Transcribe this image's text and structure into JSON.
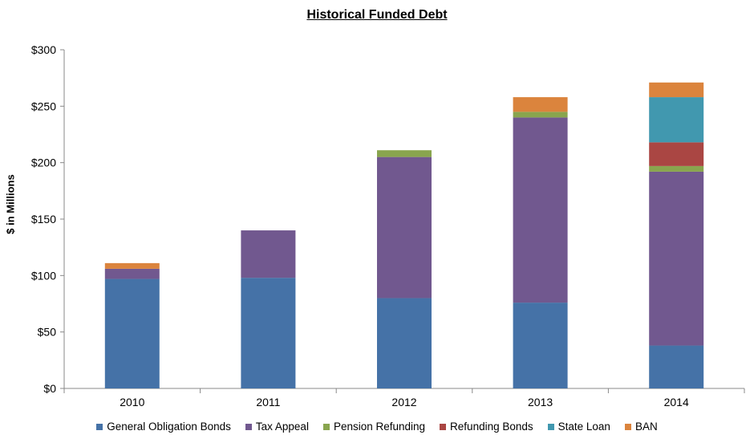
{
  "chart_data": {
    "type": "bar",
    "stacked": true,
    "title": "Historical Funded Debt",
    "xlabel": "",
    "ylabel": "$ in Millions",
    "categories": [
      "2010",
      "2011",
      "2012",
      "2013",
      "2014"
    ],
    "ylim": [
      0,
      300
    ],
    "yticks": [
      0,
      50,
      100,
      150,
      200,
      250,
      300
    ],
    "ytick_labels": [
      "$0",
      "$50",
      "$100",
      "$150",
      "$200",
      "$250",
      "$300"
    ],
    "grid": false,
    "legend_position": "bottom",
    "series": [
      {
        "name": "General Obligation Bonds",
        "color": "#4572A7",
        "values": [
          97,
          98,
          80,
          76,
          38
        ]
      },
      {
        "name": "Tax Appeal",
        "color": "#71588F",
        "values": [
          9,
          42,
          125,
          164,
          154
        ]
      },
      {
        "name": "Pension Refunding",
        "color": "#89A54E",
        "values": [
          0,
          0,
          6,
          5,
          5
        ]
      },
      {
        "name": "Refunding Bonds",
        "color": "#AA4643",
        "values": [
          0,
          0,
          0,
          0,
          21
        ]
      },
      {
        "name": "State Loan",
        "color": "#4198AF",
        "values": [
          0,
          0,
          0,
          0,
          40
        ]
      },
      {
        "name": "BAN",
        "color": "#DB843D",
        "values": [
          5,
          0,
          0,
          13,
          13
        ]
      }
    ]
  }
}
